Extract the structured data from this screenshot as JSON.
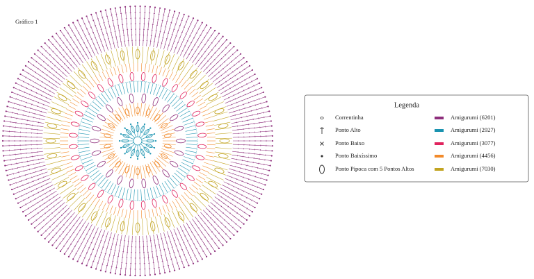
{
  "title": "Gráfico 1",
  "legend": {
    "title": "Legenda",
    "symbols": [
      "Correntinha",
      "Ponto Alto",
      "Ponto Baixo",
      "Ponto Baixíssimo",
      "Ponto Pipoca com 5 Pontos Altos"
    ],
    "colors": [
      "Amigurumi (6201)",
      "Amigurumi (2927)",
      "Amigurumi (3077)",
      "Amigurumi (4456)",
      "Amigurumi (7030)"
    ]
  }
}
